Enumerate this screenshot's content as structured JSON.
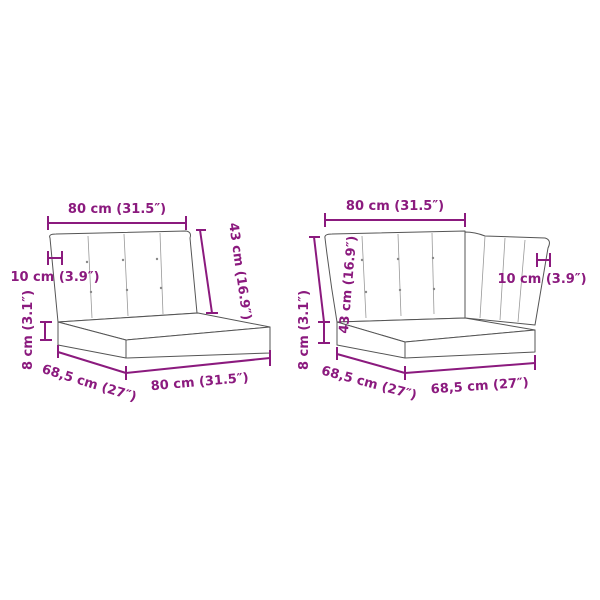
{
  "colors": {
    "dimension": "#8b1a7e",
    "outline": "#555555"
  },
  "left_cushion": {
    "backrest_width": "80 cm (31.5″)",
    "backrest_height": "43 cm (16.9″)",
    "backrest_thickness": "10 cm (3.9″)",
    "seat_thickness": "8 cm (3.1″)",
    "seat_depth": "68,5 cm (27″)",
    "seat_width": "80 cm (31.5″)"
  },
  "right_cushion": {
    "backrest_width": "80 cm (31.5″)",
    "backrest_height": "43 cm (16.9″)",
    "backrest_thickness": "10 cm (3.9″)",
    "seat_thickness": "8 cm (3.1″)",
    "seat_depth": "68,5 cm (27″)",
    "seat_width": "68,5 cm (27″)"
  }
}
